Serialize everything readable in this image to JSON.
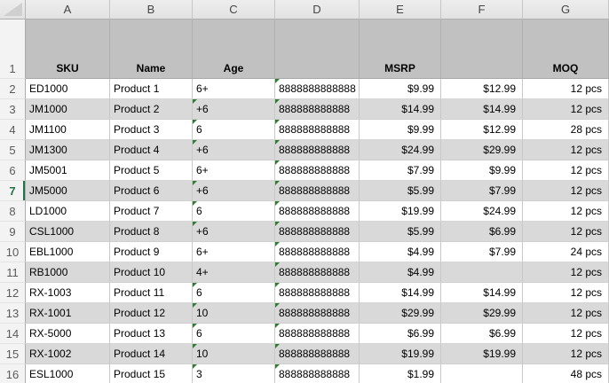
{
  "sheet": {
    "colors": {
      "accent_green": "#217346",
      "flag_green": "#2e7d32",
      "band_gray": "#d9d9d9",
      "header_band_gray": "#c1c1c1"
    },
    "column_letters": [
      "A",
      "B",
      "C",
      "D",
      "E",
      "F",
      "G"
    ],
    "selected_row_number": "7",
    "header_row": {
      "n": "1",
      "labels": {
        "a": "SKU",
        "b": "Name",
        "c": "Age",
        "d": "",
        "e": "MSRP",
        "f": "",
        "g": "MOQ"
      }
    },
    "rows": [
      {
        "n": "2",
        "sku": "ED1000",
        "name": "Product 1",
        "age": "6+",
        "age_flag": false,
        "d": "8888888888888",
        "d_flag": true,
        "msrp": "$9.99",
        "f": "$12.99",
        "moq": "12 pcs"
      },
      {
        "n": "3",
        "sku": "JM1000",
        "name": "Product 2",
        "age": "+6",
        "age_flag": true,
        "d": "888888888888",
        "d_flag": true,
        "msrp": "$14.99",
        "f": "$14.99",
        "moq": "12 pcs"
      },
      {
        "n": "4",
        "sku": "JM1100",
        "name": "Product 3",
        "age": "6",
        "age_flag": true,
        "d": "888888888888",
        "d_flag": true,
        "msrp": "$9.99",
        "f": "$12.99",
        "moq": "28 pcs"
      },
      {
        "n": "5",
        "sku": "JM1300",
        "name": "Product 4",
        "age": "+6",
        "age_flag": true,
        "d": "888888888888",
        "d_flag": true,
        "msrp": "$24.99",
        "f": "$29.99",
        "moq": "12 pcs"
      },
      {
        "n": "6",
        "sku": "JM5001",
        "name": "Product 5",
        "age": "6+",
        "age_flag": false,
        "d": "888888888888",
        "d_flag": true,
        "msrp": "$7.99",
        "f": "$9.99",
        "moq": "12 pcs"
      },
      {
        "n": "7",
        "sku": "JM5000",
        "name": "Product 6",
        "age": "+6",
        "age_flag": true,
        "d": "888888888888",
        "d_flag": true,
        "msrp": "$5.99",
        "f": "$7.99",
        "moq": "12 pcs"
      },
      {
        "n": "8",
        "sku": "LD1000",
        "name": "Product 7",
        "age": "6",
        "age_flag": true,
        "d": "888888888888",
        "d_flag": true,
        "msrp": "$19.99",
        "f": "$24.99",
        "moq": "12 pcs"
      },
      {
        "n": "9",
        "sku": "CSL1000",
        "name": "Product 8",
        "age": "+6",
        "age_flag": true,
        "d": "888888888888",
        "d_flag": true,
        "msrp": "$5.99",
        "f": "$6.99",
        "moq": "12 pcs"
      },
      {
        "n": "10",
        "sku": "EBL1000",
        "name": "Product 9",
        "age": "6+",
        "age_flag": false,
        "d": "888888888888",
        "d_flag": true,
        "msrp": "$4.99",
        "f": "$7.99",
        "moq": "24 pcs"
      },
      {
        "n": "11",
        "sku": "RB1000",
        "name": "Product 10",
        "age": "4+",
        "age_flag": false,
        "d": "888888888888",
        "d_flag": true,
        "msrp": "$4.99",
        "f": "",
        "moq": "12 pcs"
      },
      {
        "n": "12",
        "sku": "RX-1003",
        "name": "Product 11",
        "age": "6",
        "age_flag": true,
        "d": "888888888888",
        "d_flag": true,
        "msrp": "$14.99",
        "f": "$14.99",
        "moq": "12 pcs"
      },
      {
        "n": "13",
        "sku": "RX-1001",
        "name": "Product 12",
        "age": "10",
        "age_flag": true,
        "d": "888888888888",
        "d_flag": true,
        "msrp": "$29.99",
        "f": "$29.99",
        "moq": "12 pcs"
      },
      {
        "n": "14",
        "sku": "RX-5000",
        "name": "Product 13",
        "age": "6",
        "age_flag": true,
        "d": "888888888888",
        "d_flag": true,
        "msrp": "$6.99",
        "f": "$6.99",
        "moq": "12 pcs"
      },
      {
        "n": "15",
        "sku": "RX-1002",
        "name": "Product 14",
        "age": "10",
        "age_flag": true,
        "d": "888888888888",
        "d_flag": true,
        "msrp": "$19.99",
        "f": "$19.99",
        "moq": "12 pcs"
      },
      {
        "n": "16",
        "sku": "ESL1000",
        "name": "Product 15",
        "age": "3",
        "age_flag": true,
        "d": "888888888888",
        "d_flag": true,
        "msrp": "$1.99",
        "f": "",
        "moq": "48 pcs"
      }
    ]
  }
}
